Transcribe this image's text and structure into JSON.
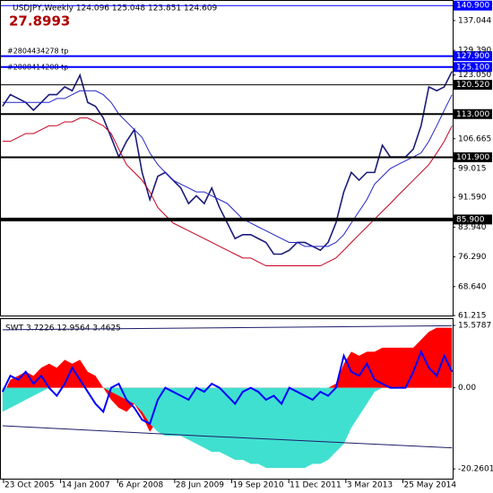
{
  "chart_data": [
    {
      "type": "line",
      "title": "USDJPY,Weekly  124.096 125.048 123.851 124.609",
      "subtitle": "27.8993",
      "annotations": [
        "#2804434278 tp",
        "#2808414208 tp"
      ],
      "x": [
        "2005-10",
        "2005-12",
        "2006-02",
        "2006-04",
        "2006-06",
        "2006-08",
        "2006-10",
        "2006-12",
        "2007-02",
        "2007-04",
        "2007-06",
        "2007-08",
        "2007-10",
        "2007-12",
        "2008-02",
        "2008-04",
        "2008-06",
        "2008-08",
        "2008-10",
        "2008-12",
        "2009-02",
        "2009-04",
        "2009-06",
        "2009-08",
        "2009-10",
        "2009-12",
        "2010-02",
        "2010-04",
        "2010-06",
        "2010-08",
        "2010-10",
        "2010-12",
        "2011-02",
        "2011-04",
        "2011-06",
        "2011-08",
        "2011-10",
        "2011-12",
        "2012-02",
        "2012-04",
        "2012-06",
        "2012-08",
        "2012-10",
        "2012-12",
        "2013-02",
        "2013-04",
        "2013-06",
        "2013-08",
        "2013-10",
        "2013-12",
        "2014-02",
        "2014-04",
        "2014-06",
        "2014-08",
        "2014-10",
        "2014-12",
        "2015-02",
        "2015-04",
        "2015-06"
      ],
      "series": [
        {
          "color": "#1c1c7a",
          "width": 1.6,
          "values": [
            115,
            118,
            117,
            116,
            114,
            116,
            118,
            118,
            120,
            119,
            123,
            116,
            115,
            112,
            107,
            102,
            106,
            109,
            98,
            91,
            97,
            98,
            96,
            94,
            90,
            92,
            90,
            94,
            89,
            85,
            81,
            82,
            82,
            81,
            80,
            77,
            77,
            78,
            80,
            80,
            79,
            78,
            80,
            85,
            93,
            98,
            96,
            98,
            98,
            105,
            102,
            102,
            102,
            104,
            110,
            120,
            119,
            120,
            124
          ]
        },
        {
          "color": "#2424c8",
          "width": 1,
          "values": [
            116,
            116,
            116,
            116,
            116,
            116,
            116,
            117,
            117,
            118,
            119,
            119,
            119,
            118,
            116,
            113,
            111,
            109,
            107,
            103,
            100,
            98,
            96,
            95,
            94,
            93,
            93,
            92,
            91,
            90,
            88,
            86,
            85,
            84,
            83,
            82,
            81,
            80,
            80,
            79,
            79,
            79,
            79,
            80,
            82,
            85,
            88,
            91,
            95,
            97,
            99,
            100,
            101,
            102,
            103,
            106,
            110,
            114,
            118
          ]
        },
        {
          "color": "#c80020",
          "width": 1,
          "values": [
            106,
            106,
            107,
            108,
            108,
            109,
            110,
            110,
            111,
            111,
            112,
            112,
            111,
            110,
            108,
            104,
            100,
            98,
            96,
            93,
            89,
            87,
            85,
            84,
            83,
            82,
            81,
            80,
            79,
            78,
            77,
            76,
            76,
            75,
            74,
            74,
            74,
            74,
            74,
            74,
            74,
            74,
            75,
            76,
            78,
            80,
            82,
            84,
            86,
            88,
            90,
            92,
            94,
            96,
            98,
            100,
            103,
            106,
            110
          ]
        }
      ],
      "xlim": [
        "2005-10-02",
        "2015-06-20"
      ],
      "ylim": [
        61.215,
        142.1
      ],
      "yticks": [
        137.044,
        {
          "value": 129.39,
          "label": "129.390"
        },
        {
          "value": 123.05,
          "label": "123.050"
        },
        106.665,
        99.015,
        {
          "value": 91.59,
          "label": "91.590"
        },
        {
          "value": 83.94,
          "label": "83.940"
        },
        {
          "value": 76.29,
          "label": "76.290"
        },
        {
          "value": 68.64,
          "label": "68.640"
        },
        61.215
      ],
      "levels": [
        {
          "value": 140.9,
          "label": "140.900",
          "color": "#0000ff",
          "width": 1
        },
        {
          "value": 127.9,
          "label": "127.900",
          "color": "#0000ff",
          "width": 2
        },
        {
          "value": 125.1,
          "label": "125.100",
          "color": "#0000ff",
          "width": 2
        },
        {
          "value": 120.52,
          "label": "120.520",
          "color": "#000000",
          "width": 1
        },
        {
          "value": 113,
          "label": "113.000",
          "color": "#000000",
          "width": 2
        },
        {
          "value": 101.9,
          "label": "101.900",
          "color": "#000000",
          "width": 2
        },
        {
          "value": 85.9,
          "label": "85.900",
          "color": "#000000",
          "width": 4
        }
      ]
    },
    {
      "type": "area",
      "title": "SWT 3.7226 12.9564 3.4625",
      "x": [
        "2005-10",
        "2005-12",
        "2006-02",
        "2006-04",
        "2006-06",
        "2006-08",
        "2006-10",
        "2006-12",
        "2007-02",
        "2007-04",
        "2007-06",
        "2007-08",
        "2007-10",
        "2007-12",
        "2008-02",
        "2008-04",
        "2008-06",
        "2008-08",
        "2008-10",
        "2008-12",
        "2009-02",
        "2009-04",
        "2009-06",
        "2009-08",
        "2009-10",
        "2009-12",
        "2010-02",
        "2010-04",
        "2010-06",
        "2010-08",
        "2010-10",
        "2010-12",
        "2011-02",
        "2011-04",
        "2011-06",
        "2011-08",
        "2011-10",
        "2011-12",
        "2012-02",
        "2012-04",
        "2012-06",
        "2012-08",
        "2012-10",
        "2012-12",
        "2013-02",
        "2013-04",
        "2013-06",
        "2013-08",
        "2013-10",
        "2013-12",
        "2014-02",
        "2014-04",
        "2014-06",
        "2014-08",
        "2014-10",
        "2014-12",
        "2015-02",
        "2015-04",
        "2015-06"
      ],
      "series": [
        {
          "color": "#ff0000",
          "fill": true,
          "values": [
            -2,
            2,
            3,
            4,
            3,
            5,
            6,
            5,
            7,
            6,
            7,
            4,
            3,
            0,
            -3,
            -5,
            -6,
            -4,
            -7,
            -11,
            -8,
            -5,
            -3,
            -4,
            -6,
            -4,
            -3,
            -2,
            -3,
            -5,
            -6,
            -5,
            -4,
            -3,
            -3,
            -4,
            -3,
            -2,
            -1,
            -1,
            -1,
            0,
            0,
            1,
            6,
            9,
            8,
            9,
            9,
            10,
            10,
            10,
            10,
            10,
            12,
            14,
            15,
            15,
            15
          ]
        },
        {
          "color": "#40e0d0",
          "fill": true,
          "values": [
            -6,
            -5,
            -4,
            -3,
            -2,
            -1,
            0,
            0,
            0,
            0,
            0,
            0,
            0,
            0,
            -1,
            -2,
            -3,
            -4,
            -6,
            -9,
            -11,
            -12,
            -12,
            -12,
            -13,
            -14,
            -15,
            -16,
            -16,
            -17,
            -18,
            -18,
            -19,
            -19,
            -20,
            -20,
            -20,
            -20,
            -20,
            -20,
            -19,
            -19,
            -18,
            -16,
            -14,
            -10,
            -7,
            -4,
            -1,
            0,
            0,
            0,
            0,
            0,
            0,
            0,
            0,
            0,
            0
          ]
        },
        {
          "color": "#0000ff",
          "width": 2,
          "values": [
            -1,
            3,
            2,
            4,
            1,
            3,
            0,
            -2,
            1,
            5,
            2,
            -1,
            -4,
            -6,
            0,
            1,
            -3,
            -5,
            -8,
            -9,
            -3,
            0,
            -1,
            -2,
            -3,
            0,
            -1,
            1,
            0,
            -2,
            -4,
            -1,
            0,
            -1,
            -3,
            -2,
            -4,
            0,
            -1,
            -2,
            -3,
            -1,
            -2,
            0,
            8,
            4,
            3,
            6,
            2,
            1,
            0,
            0,
            0,
            4,
            9,
            5,
            3,
            8,
            4
          ]
        },
        {
          "color": "#1c1c6a",
          "width": 1,
          "x": [
            "2005-10",
            "2015-06"
          ],
          "values": [
            14.5,
            15.5
          ]
        },
        {
          "color": "#1c1c6a",
          "width": 1,
          "x": [
            "2005-10",
            "2010-01",
            "2015-06"
          ],
          "values": [
            -9.5,
            -12,
            -15
          ]
        }
      ],
      "xlim": [
        "2005-10-02",
        "2015-06-20"
      ],
      "ylim": [
        -22.7,
        17.15
      ],
      "yticks": [
        15.5787,
        {
          "value": 0,
          "label": "0.00"
        },
        -20.2601
      ],
      "xticks": [
        {
          "value": "2005-10-23",
          "label": "23 Oct 2005"
        },
        {
          "value": "2007-01-14",
          "label": "14 Jan 2007"
        },
        {
          "value": "2008-04-06",
          "label": "6 Apr 2008"
        },
        {
          "value": "2009-06-28",
          "label": "28 Jun 2009"
        },
        {
          "value": "2010-09-19",
          "label": "19 Sep 2010"
        },
        {
          "value": "2011-12-11",
          "label": "11 Dec 2011"
        },
        {
          "value": "2013-03-03",
          "label": "3 Mar 2013"
        },
        {
          "value": "2014-05-25",
          "label": "25 May 2014"
        }
      ]
    }
  ]
}
